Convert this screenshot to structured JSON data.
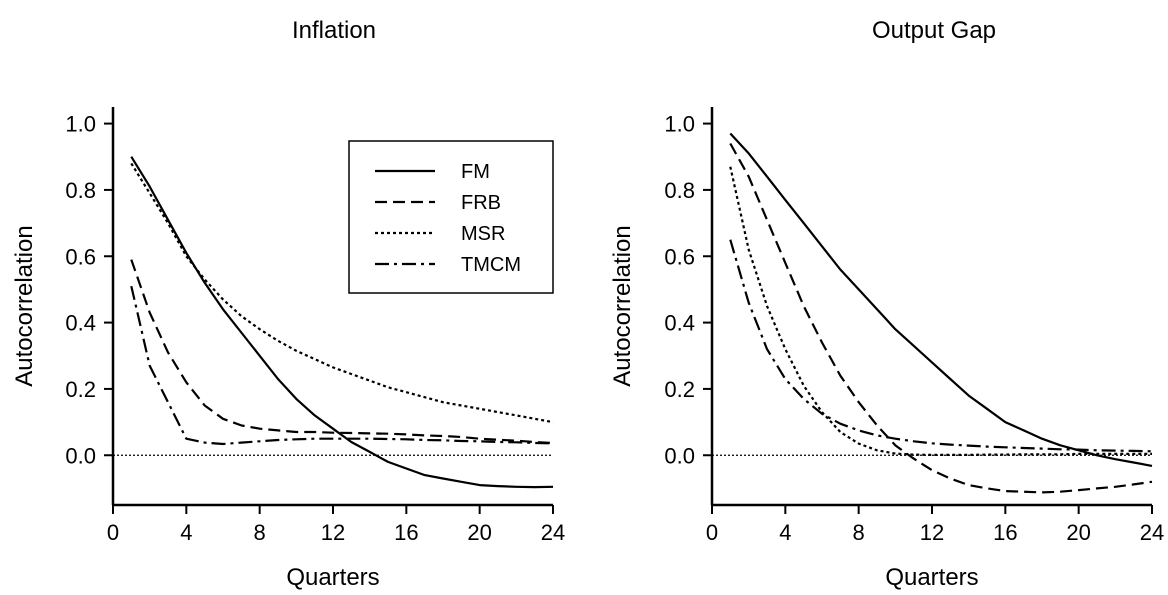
{
  "chart_data": [
    {
      "type": "line",
      "title": "Inflation",
      "xlabel": "Quarters",
      "ylabel": "Autocorrelation",
      "xlim": [
        0,
        24
      ],
      "ylim": [
        -0.15,
        1.05
      ],
      "xticks": [
        "0",
        "4",
        "8",
        "12",
        "16",
        "20",
        "24"
      ],
      "yticks": [
        "0.0",
        "0.2",
        "0.4",
        "0.6",
        "0.8",
        "1.0"
      ],
      "reference_line_y": 0,
      "grid": false,
      "legend": {
        "placement": "top-right",
        "entries": [
          "FM",
          "FRB",
          "MSR",
          "TMCM"
        ]
      },
      "x": [
        1,
        2,
        3,
        4,
        5,
        6,
        7,
        8,
        9,
        10,
        11,
        12,
        13,
        14,
        15,
        16,
        17,
        18,
        19,
        20,
        21,
        22,
        23,
        24
      ],
      "series": [
        {
          "name": "FM",
          "style": "solid",
          "values": [
            0.9,
            0.81,
            0.71,
            0.61,
            0.52,
            0.44,
            0.37,
            0.3,
            0.23,
            0.17,
            0.12,
            0.08,
            0.04,
            0.01,
            -0.02,
            -0.04,
            -0.06,
            -0.07,
            -0.08,
            -0.09,
            -0.093,
            -0.095,
            -0.096,
            -0.095
          ]
        },
        {
          "name": "FRB",
          "style": "dashed",
          "values": [
            0.59,
            0.43,
            0.31,
            0.22,
            0.15,
            0.11,
            0.09,
            0.08,
            0.075,
            0.07,
            0.07,
            0.068,
            0.067,
            0.066,
            0.065,
            0.063,
            0.06,
            0.058,
            0.055,
            0.05,
            0.047,
            0.044,
            0.04,
            0.037
          ]
        },
        {
          "name": "MSR",
          "style": "dotted",
          "values": [
            0.88,
            0.79,
            0.7,
            0.6,
            0.53,
            0.47,
            0.42,
            0.38,
            0.345,
            0.315,
            0.29,
            0.265,
            0.245,
            0.225,
            0.205,
            0.19,
            0.175,
            0.16,
            0.15,
            0.14,
            0.13,
            0.12,
            0.11,
            0.1
          ]
        },
        {
          "name": "TMCM",
          "style": "dashdot",
          "values": [
            0.51,
            0.27,
            0.16,
            0.05,
            0.038,
            0.034,
            0.038,
            0.042,
            0.046,
            0.048,
            0.05,
            0.05,
            0.05,
            0.05,
            0.049,
            0.048,
            0.046,
            0.045,
            0.043,
            0.042,
            0.04,
            0.039,
            0.037,
            0.036
          ]
        }
      ]
    },
    {
      "type": "line",
      "title": "Output Gap",
      "xlabel": "Quarters",
      "ylabel": "Autocorrelation",
      "xlim": [
        0,
        24
      ],
      "ylim": [
        -0.15,
        1.05
      ],
      "xticks": [
        "0",
        "4",
        "8",
        "12",
        "16",
        "20",
        "24"
      ],
      "yticks": [
        "0.0",
        "0.2",
        "0.4",
        "0.6",
        "0.8",
        "1.0"
      ],
      "reference_line_y": 0,
      "grid": false,
      "x": [
        1,
        2,
        3,
        4,
        5,
        6,
        7,
        8,
        9,
        10,
        11,
        12,
        13,
        14,
        15,
        16,
        17,
        18,
        19,
        20,
        21,
        22,
        23,
        24
      ],
      "series": [
        {
          "name": "FM",
          "style": "solid",
          "values": [
            0.97,
            0.91,
            0.84,
            0.77,
            0.7,
            0.63,
            0.56,
            0.5,
            0.44,
            0.38,
            0.33,
            0.28,
            0.23,
            0.18,
            0.14,
            0.1,
            0.075,
            0.05,
            0.03,
            0.015,
            0.0,
            -0.012,
            -0.022,
            -0.032
          ]
        },
        {
          "name": "FRB",
          "style": "dashed",
          "values": [
            0.94,
            0.84,
            0.71,
            0.58,
            0.45,
            0.34,
            0.24,
            0.16,
            0.09,
            0.03,
            -0.01,
            -0.045,
            -0.07,
            -0.09,
            -0.1,
            -0.108,
            -0.11,
            -0.112,
            -0.11,
            -0.105,
            -0.1,
            -0.095,
            -0.088,
            -0.08
          ]
        },
        {
          "name": "MSR",
          "style": "dotted",
          "values": [
            0.87,
            0.62,
            0.45,
            0.32,
            0.21,
            0.13,
            0.07,
            0.035,
            0.015,
            0.005,
            0.002,
            0.001,
            0.001,
            0.001,
            0.002,
            0.002,
            0.003,
            0.003,
            0.003,
            0.004,
            0.004,
            0.004,
            0.004,
            0.004
          ]
        },
        {
          "name": "TMCM",
          "style": "dashdot",
          "values": [
            0.65,
            0.46,
            0.32,
            0.23,
            0.17,
            0.125,
            0.095,
            0.075,
            0.06,
            0.05,
            0.042,
            0.036,
            0.032,
            0.029,
            0.026,
            0.024,
            0.022,
            0.02,
            0.018,
            0.017,
            0.015,
            0.014,
            0.013,
            0.012
          ]
        }
      ]
    }
  ]
}
